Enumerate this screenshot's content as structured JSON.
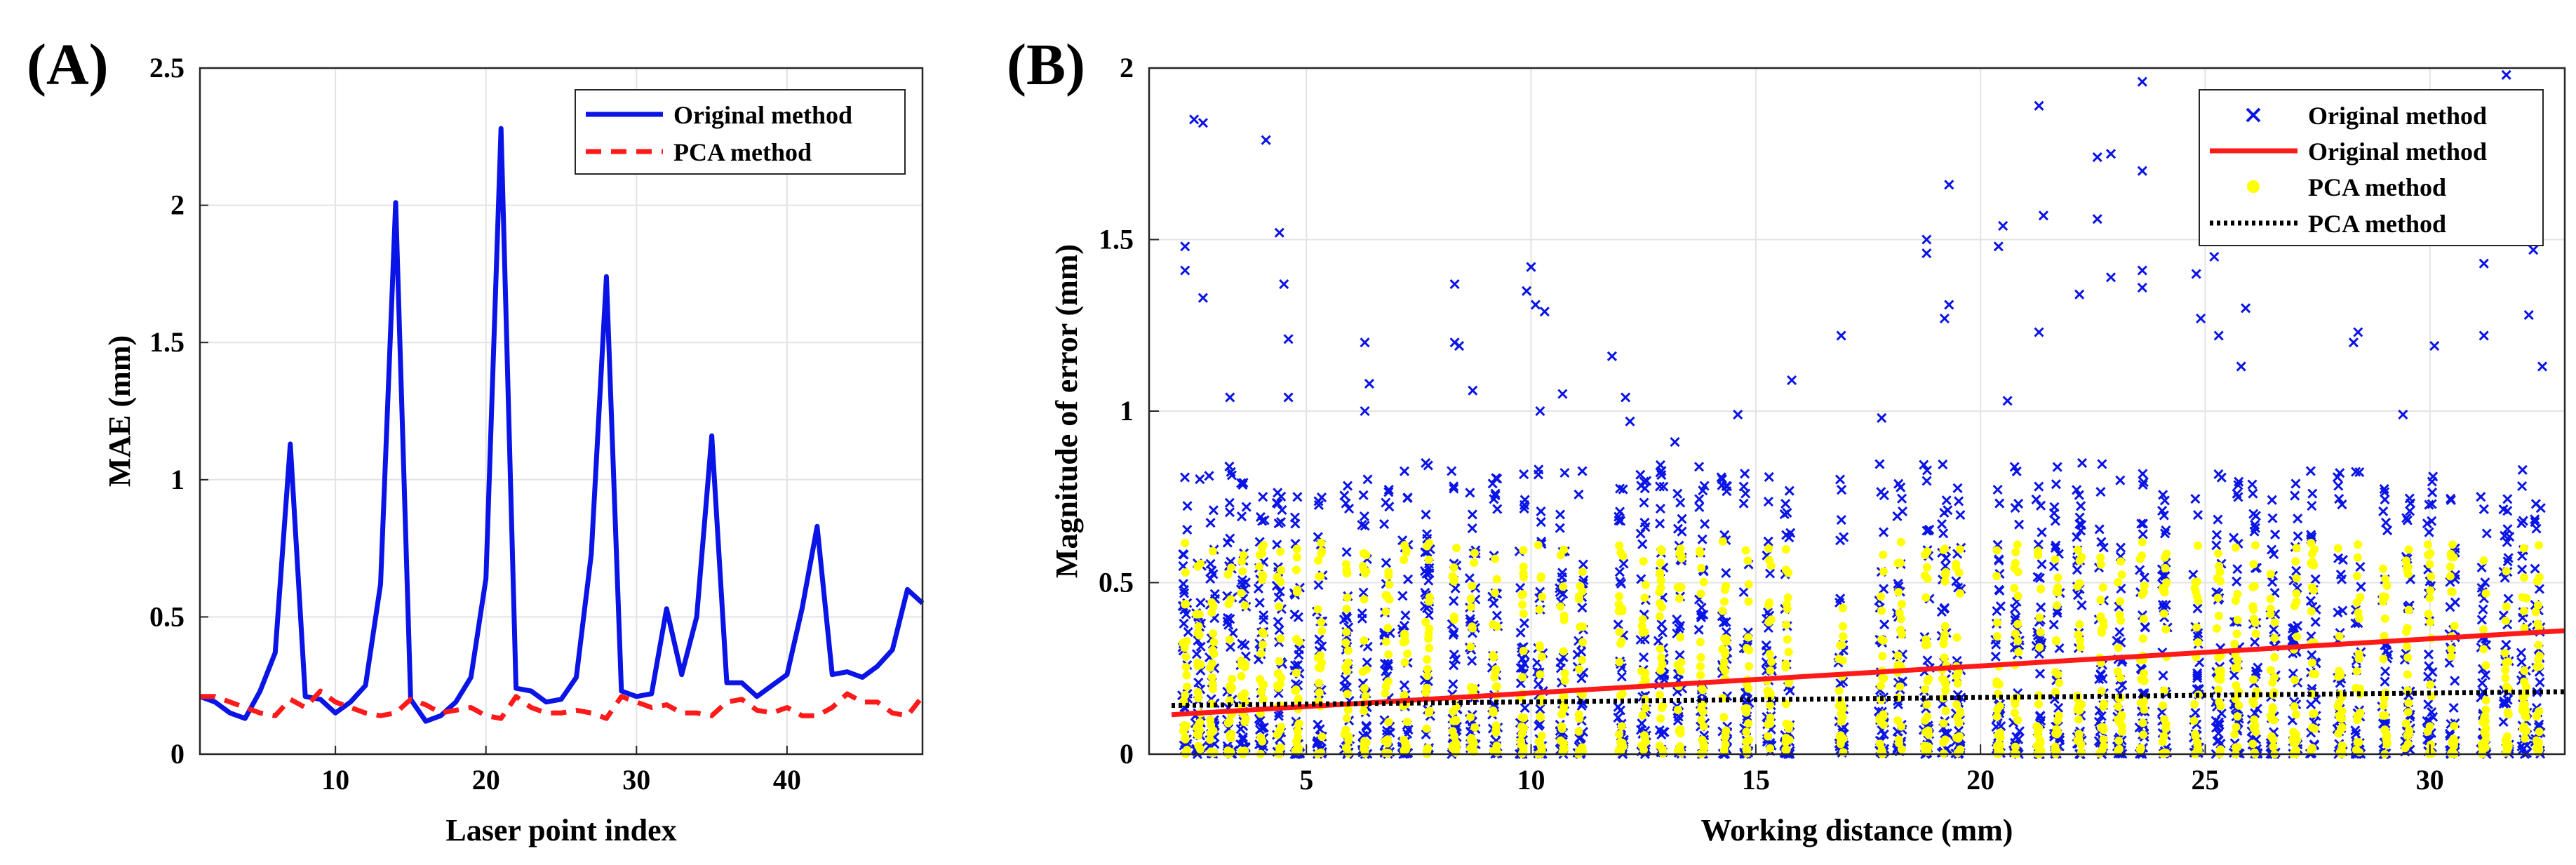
{
  "chart_data": [
    {
      "type": "line",
      "panel_label": "(A)",
      "xlabel": "Laser point index",
      "ylabel": "MAE (mm)",
      "xlim": [
        1,
        49
      ],
      "ylim": [
        0,
        2.5
      ],
      "xticks": [
        10,
        20,
        30,
        40
      ],
      "yticks": [
        0,
        0.5,
        1,
        1.5,
        2,
        2.5
      ],
      "ytick_labels": [
        "0",
        "0.5",
        "1",
        "1.5",
        "2",
        "2.5"
      ],
      "grid": true,
      "legend_position": "top-right",
      "x": [
        1,
        2,
        3,
        4,
        5,
        6,
        7,
        8,
        9,
        10,
        11,
        12,
        13,
        14,
        15,
        16,
        17,
        18,
        19,
        20,
        21,
        22,
        23,
        24,
        25,
        26,
        27,
        28,
        29,
        30,
        31,
        32,
        33,
        34,
        35,
        36,
        37,
        38,
        39,
        40,
        41,
        42,
        43,
        44,
        45,
        46,
        47,
        48,
        49
      ],
      "series": [
        {
          "name": "Original method",
          "color": "#0a14e6",
          "style": "solid",
          "values": [
            0.21,
            0.19,
            0.15,
            0.13,
            0.23,
            0.37,
            1.13,
            0.21,
            0.2,
            0.15,
            0.19,
            0.25,
            0.62,
            2.01,
            0.2,
            0.12,
            0.14,
            0.19,
            0.28,
            0.64,
            2.28,
            0.24,
            0.23,
            0.19,
            0.2,
            0.28,
            0.73,
            1.74,
            0.23,
            0.21,
            0.22,
            0.53,
            0.29,
            0.5,
            1.16,
            0.26,
            0.26,
            0.21,
            0.25,
            0.29,
            0.53,
            0.83,
            0.29,
            0.3,
            0.28,
            0.32,
            0.38,
            0.6,
            0.55
          ]
        },
        {
          "name": "PCA method",
          "color": "#ff1a1a",
          "style": "dashed",
          "values": [
            0.21,
            0.21,
            0.19,
            0.17,
            0.15,
            0.14,
            0.2,
            0.17,
            0.23,
            0.19,
            0.17,
            0.15,
            0.14,
            0.15,
            0.2,
            0.18,
            0.15,
            0.16,
            0.17,
            0.14,
            0.13,
            0.21,
            0.17,
            0.15,
            0.15,
            0.16,
            0.15,
            0.13,
            0.21,
            0.19,
            0.17,
            0.18,
            0.15,
            0.15,
            0.14,
            0.19,
            0.2,
            0.16,
            0.15,
            0.17,
            0.14,
            0.14,
            0.17,
            0.22,
            0.19,
            0.19,
            0.15,
            0.14,
            0.21
          ]
        }
      ]
    },
    {
      "type": "scatter",
      "panel_label": "(B)",
      "xlabel": "Working distance (mm)",
      "ylabel": "Magnitude of error (mm)",
      "xlim": [
        1.5,
        33
      ],
      "ylim": [
        0,
        2
      ],
      "xticks": [
        5,
        10,
        15,
        20,
        25,
        30
      ],
      "yticks": [
        0,
        0.5,
        1,
        1.5,
        2
      ],
      "ytick_labels": [
        "0",
        "0.5",
        "1",
        "1.5",
        "2"
      ],
      "grid": true,
      "legend_position": "top-right",
      "distance_columns": [
        2.3,
        2.6,
        2.9,
        3.3,
        3.6,
        4.0,
        4.4,
        4.8,
        5.3,
        5.9,
        6.3,
        6.8,
        7.2,
        7.7,
        8.3,
        8.7,
        9.2,
        9.8,
        10.2,
        10.7,
        11.1,
        12.0,
        12.5,
        12.9,
        13.3,
        13.8,
        14.3,
        14.8,
        15.3,
        15.7,
        16.9,
        17.8,
        18.2,
        18.8,
        19.2,
        19.5,
        20.4,
        20.8,
        21.3,
        21.7,
        22.2,
        22.7,
        23.1,
        23.6,
        24.1,
        24.8,
        25.3,
        25.7,
        26.1,
        26.5,
        27.0,
        27.4,
        28.0,
        28.4,
        29.0,
        29.5,
        30.0,
        30.5,
        31.2,
        31.7,
        32.1,
        32.4
      ],
      "outlier_points": [
        [
          2.3,
          1.48
        ],
        [
          2.3,
          1.41
        ],
        [
          2.5,
          1.85
        ],
        [
          2.7,
          1.84
        ],
        [
          2.7,
          1.33
        ],
        [
          3.3,
          1.04
        ],
        [
          4.1,
          1.79
        ],
        [
          4.4,
          1.52
        ],
        [
          4.5,
          1.37
        ],
        [
          4.6,
          1.21
        ],
        [
          4.6,
          1.04
        ],
        [
          4.8,
          0.75
        ],
        [
          6.3,
          1.2
        ],
        [
          6.4,
          1.08
        ],
        [
          6.3,
          1.0
        ],
        [
          8.3,
          1.37
        ],
        [
          8.3,
          1.2
        ],
        [
          8.4,
          1.19
        ],
        [
          8.7,
          1.06
        ],
        [
          10.0,
          1.42
        ],
        [
          9.9,
          1.35
        ],
        [
          10.1,
          1.31
        ],
        [
          10.3,
          1.29
        ],
        [
          10.2,
          1.0
        ],
        [
          10.7,
          1.05
        ],
        [
          11.8,
          1.16
        ],
        [
          12.1,
          1.04
        ],
        [
          12.2,
          0.97
        ],
        [
          13.2,
          0.91
        ],
        [
          14.6,
          0.99
        ],
        [
          15.8,
          1.09
        ],
        [
          16.9,
          1.22
        ],
        [
          17.8,
          0.98
        ],
        [
          18.8,
          1.5
        ],
        [
          18.8,
          1.46
        ],
        [
          19.3,
          1.66
        ],
        [
          19.3,
          1.31
        ],
        [
          19.2,
          1.27
        ],
        [
          20.5,
          1.54
        ],
        [
          20.4,
          1.48
        ],
        [
          20.6,
          1.03
        ],
        [
          21.3,
          1.89
        ],
        [
          21.4,
          1.57
        ],
        [
          21.3,
          1.23
        ],
        [
          22.2,
          1.34
        ],
        [
          22.6,
          1.74
        ],
        [
          22.9,
          1.75
        ],
        [
          22.6,
          1.56
        ],
        [
          22.9,
          1.39
        ],
        [
          23.6,
          1.96
        ],
        [
          23.6,
          1.7
        ],
        [
          23.6,
          1.41
        ],
        [
          23.6,
          1.36
        ],
        [
          24.8,
          1.4
        ],
        [
          24.9,
          1.27
        ],
        [
          25.2,
          1.45
        ],
        [
          25.3,
          1.22
        ],
        [
          25.9,
          1.3
        ],
        [
          25.8,
          1.13
        ],
        [
          28.3,
          1.2
        ],
        [
          28.4,
          1.23
        ],
        [
          29.4,
          0.99
        ],
        [
          30.1,
          1.19
        ],
        [
          31.2,
          1.43
        ],
        [
          31.2,
          1.22
        ],
        [
          31.7,
          1.98
        ],
        [
          32.3,
          1.47
        ],
        [
          32.2,
          1.28
        ],
        [
          32.5,
          1.13
        ]
      ],
      "fit_lines": [
        {
          "name": "Original method",
          "color": "#ff1a1a",
          "style": "solid",
          "x": [
            2.0,
            33.0
          ],
          "y": [
            0.115,
            0.36
          ]
        },
        {
          "name": "PCA method",
          "color": "#000000",
          "style": "dotted",
          "x": [
            2.0,
            33.0
          ],
          "y": [
            0.142,
            0.182
          ]
        }
      ],
      "legend": [
        {
          "label": "Original method",
          "marker": "x",
          "color": "#0a14e6"
        },
        {
          "label": "Original method",
          "marker": "line",
          "color": "#ff1a1a"
        },
        {
          "label": "PCA method",
          "marker": "dot",
          "color": "#ffff00"
        },
        {
          "label": "PCA method",
          "marker": "dotted",
          "color": "#000000"
        }
      ]
    }
  ]
}
